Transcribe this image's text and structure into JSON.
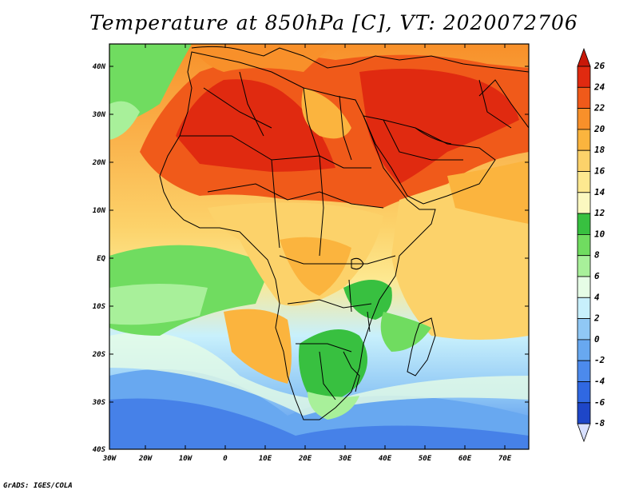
{
  "title": "Temperature at 850hPa [C], VT: 2020072706",
  "credit": "GrADS: IGES/COLA",
  "map": {
    "lat_ticks": [
      "40N",
      "30N",
      "20N",
      "10N",
      "EQ",
      "10S",
      "20S",
      "30S",
      "40S"
    ],
    "lon_ticks": [
      "30W",
      "20W",
      "10W",
      "0",
      "10E",
      "20E",
      "30E",
      "40E",
      "50E",
      "60E",
      "70E"
    ],
    "variable": "Temperature at 850hPa",
    "units": "C"
  },
  "colorbar": {
    "labels": [
      "26",
      "24",
      "22",
      "20",
      "18",
      "16",
      "14",
      "12",
      "10",
      "8",
      "6",
      "4",
      "2",
      "0",
      "-2",
      "-4",
      "-6",
      "-8"
    ],
    "colors": [
      "#e02a10",
      "#f05a1a",
      "#f8902a",
      "#fbb43e",
      "#fcd26a",
      "#fde890",
      "#fbf8c0",
      "#38c040",
      "#70dc60",
      "#a8f09a",
      "#e6fde6",
      "#c8f0fc",
      "#90c8f5",
      "#68a8f0",
      "#4c8aec",
      "#3068e2",
      "#1e46c8",
      "#10208c"
    ],
    "top_arrow_color": "#c81808",
    "bottom_arrow_color": "#d8e0ff"
  }
}
